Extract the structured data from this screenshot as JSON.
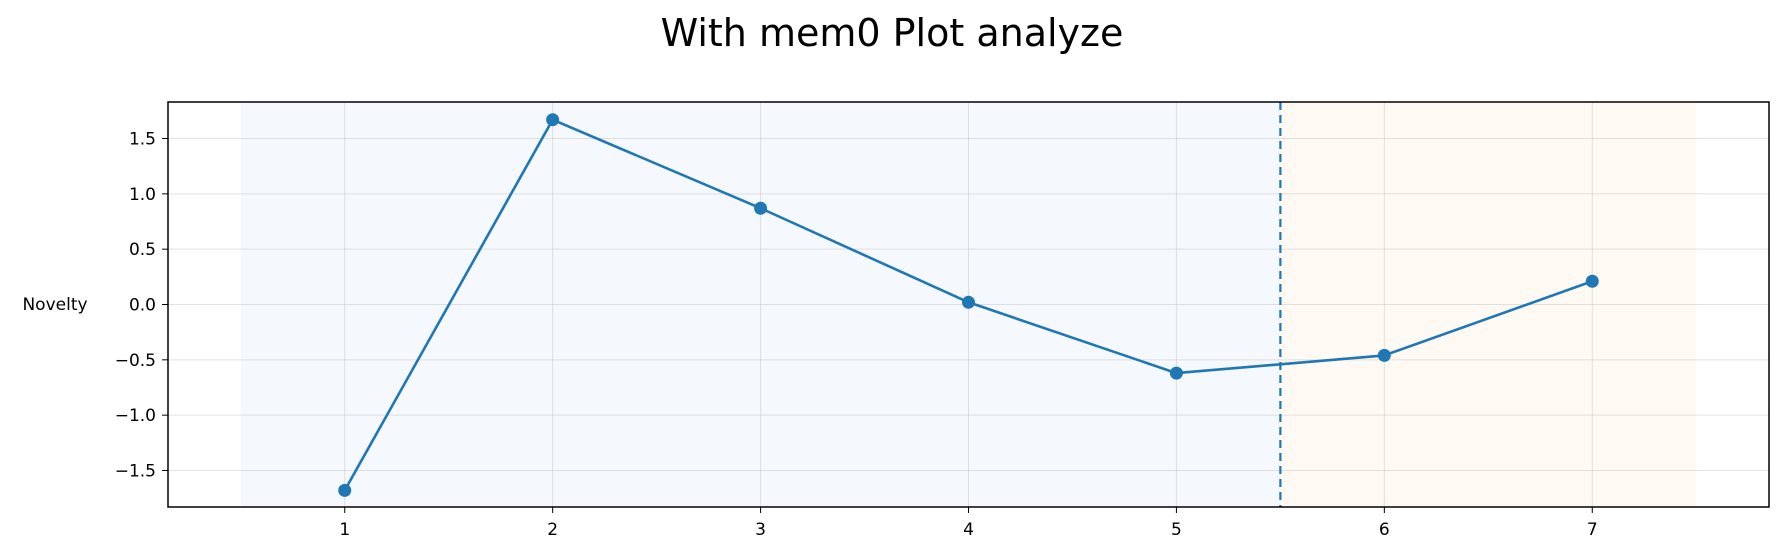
{
  "chart_data": {
    "type": "line",
    "title": "With mem0 Plot analyze",
    "xlabel": "",
    "ylabel": "Novelty",
    "x": [
      1,
      2,
      3,
      4,
      5,
      6,
      7
    ],
    "series": [
      {
        "values": [
          -1.68,
          1.67,
          0.87,
          0.02,
          -0.62,
          -0.46,
          0.21
        ]
      }
    ],
    "xlim": [
      0.15,
      7.85
    ],
    "ylim": [
      -1.83,
      1.83
    ],
    "xticks": [
      "1",
      "2",
      "3",
      "4",
      "5",
      "6",
      "7"
    ],
    "yticks": [
      "1.5",
      "1.0",
      "0.5",
      "0.0",
      "−0.5",
      "−1.0",
      "−1.5"
    ],
    "ytick_values": [
      1.5,
      1.0,
      0.5,
      0.0,
      -0.5,
      -1.0,
      -1.5
    ],
    "regions": [
      {
        "x_start": 0.5,
        "x_end": 5.5,
        "color": "#f5f8fc"
      },
      {
        "x_start": 5.5,
        "x_end": 7.5,
        "color": "#fef9f2"
      }
    ],
    "divider_x": 5.5,
    "grid": true,
    "colors": {
      "series": "#1f77b4",
      "divider": "#1f77b4"
    }
  }
}
